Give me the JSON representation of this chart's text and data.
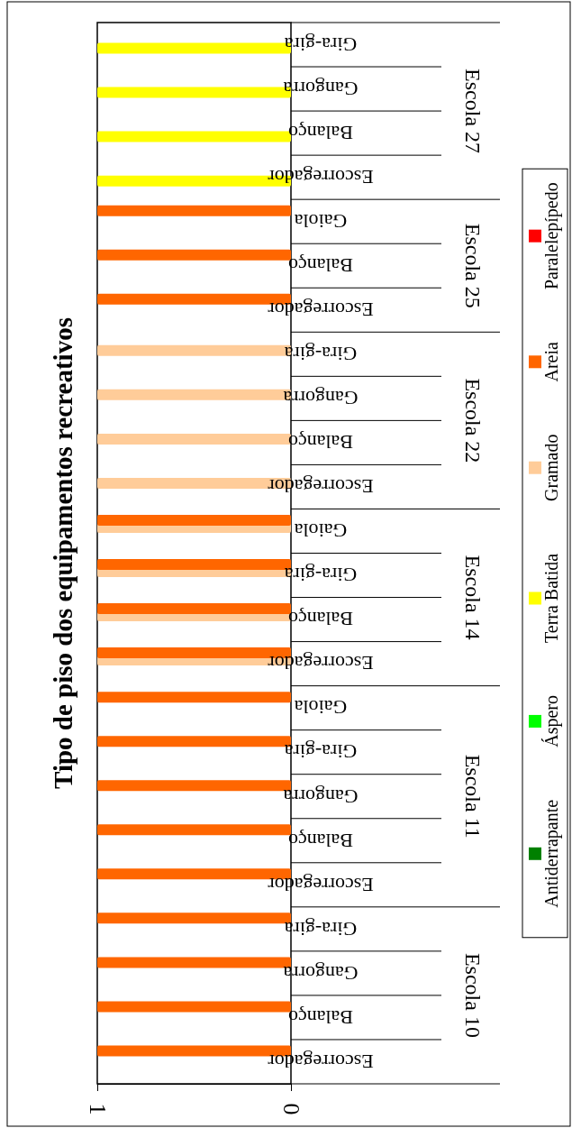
{
  "chart_data": {
    "type": "bar",
    "orientation": "horizontal",
    "title": "Tipo de piso dos equipamentos recreativos",
    "categories": [
      "Gira-gira",
      "Gangorra",
      "Balanço",
      "Escorregador",
      "Gaiola",
      "Balanço",
      "Escorregador",
      "Gira-gira",
      "Gangorra",
      "Balanço",
      "Escorregador",
      "Gaiola",
      "Gira-gira",
      "Balanço",
      "Escorregador",
      "Gaiola",
      "Gira-gira",
      "Gangorra",
      "Balanço",
      "Escorregador",
      "Gira-gira",
      "Gangorra",
      "Balanço",
      "Escorregador"
    ],
    "annotations": [
      "Escola 27",
      "Escola 25",
      "Escola 22",
      "Escola 14",
      "Escola 11",
      "Escola 10"
    ],
    "series": [
      {
        "name": "Antiderrapante",
        "color": "#008000",
        "values": [
          null,
          null,
          null,
          null,
          null,
          null,
          null,
          null,
          null,
          null,
          null,
          null,
          null,
          null,
          null,
          null,
          null,
          null,
          null,
          null,
          null,
          null,
          null,
          null
        ]
      },
      {
        "name": "Áspero",
        "color": "#00ff00",
        "values": [
          null,
          null,
          null,
          null,
          null,
          null,
          null,
          null,
          null,
          null,
          null,
          null,
          null,
          null,
          null,
          null,
          null,
          null,
          null,
          null,
          null,
          null,
          null,
          null
        ]
      },
      {
        "name": "Terra Batida",
        "color": "#ffff00",
        "values": [
          1,
          1,
          1,
          1,
          null,
          null,
          null,
          null,
          null,
          null,
          null,
          null,
          null,
          null,
          null,
          null,
          null,
          null,
          null,
          null,
          null,
          null,
          null,
          null
        ]
      },
      {
        "name": "Gramado",
        "color": "#ffcc99",
        "values": [
          null,
          null,
          null,
          null,
          null,
          null,
          null,
          1,
          1,
          1,
          1,
          1,
          1,
          1,
          1,
          null,
          null,
          null,
          null,
          null,
          null,
          null,
          null,
          null
        ]
      },
      {
        "name": "Areia",
        "color": "#ff6600",
        "values": [
          null,
          null,
          null,
          null,
          1,
          1,
          1,
          null,
          null,
          null,
          null,
          1,
          1,
          1,
          1,
          1,
          1,
          1,
          1,
          1,
          1,
          1,
          1,
          1
        ]
      },
      {
        "name": "Paralelepípedo",
        "color": "#ff0000",
        "values": [
          null,
          null,
          null,
          null,
          null,
          null,
          null,
          null,
          null,
          null,
          null,
          null,
          null,
          null,
          null,
          null,
          null,
          null,
          null,
          null,
          null,
          null,
          null,
          null
        ]
      }
    ],
    "xlim": [
      1,
      0
    ],
    "xticks": [
      1,
      0
    ],
    "grid": false,
    "legend": "right"
  }
}
